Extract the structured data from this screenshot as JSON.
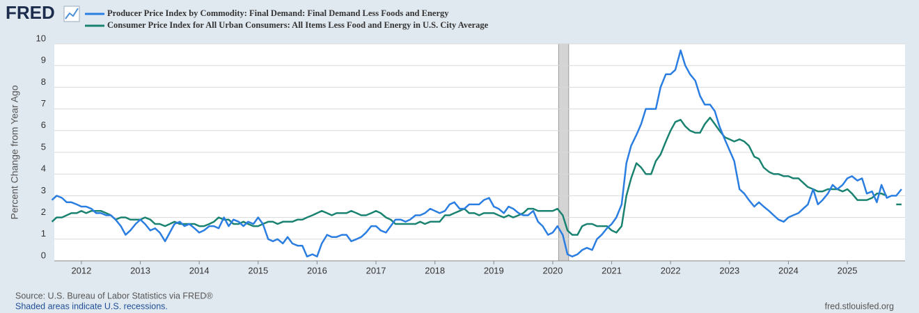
{
  "chart_data": {
    "type": "line",
    "logo": "FRED",
    "ylabel": "Percent Change from Year Ago",
    "source": "Source: U.S. Bureau of Labor Statistics via FRED®",
    "note": "Shaded areas indicate U.S. recessions.",
    "credit": "fred.stlouisfed.org",
    "xlim": [
      2011.54,
      2025.98
    ],
    "xticks": [
      2012,
      2013,
      2014,
      2015,
      2016,
      2017,
      2018,
      2019,
      2020,
      2021,
      2022,
      2023,
      2024,
      2025
    ],
    "ylim": [
      0,
      10
    ],
    "yticks": [
      0,
      1,
      2,
      3,
      4,
      5,
      6,
      7,
      8,
      9,
      10
    ],
    "grid": true,
    "recessions": [
      [
        2020.1,
        2020.27
      ]
    ],
    "x": [
      2011.5,
      2011.58,
      2011.67,
      2011.75,
      2011.83,
      2011.92,
      2012.0,
      2012.08,
      2012.17,
      2012.25,
      2012.33,
      2012.42,
      2012.5,
      2012.58,
      2012.67,
      2012.75,
      2012.83,
      2012.92,
      2013.0,
      2013.08,
      2013.17,
      2013.25,
      2013.33,
      2013.42,
      2013.5,
      2013.58,
      2013.67,
      2013.75,
      2013.83,
      2013.92,
      2014.0,
      2014.08,
      2014.17,
      2014.25,
      2014.33,
      2014.42,
      2014.5,
      2014.58,
      2014.67,
      2014.75,
      2014.83,
      2014.92,
      2015.0,
      2015.08,
      2015.17,
      2015.25,
      2015.33,
      2015.42,
      2015.5,
      2015.58,
      2015.67,
      2015.75,
      2015.83,
      2015.92,
      2016.0,
      2016.08,
      2016.17,
      2016.25,
      2016.33,
      2016.42,
      2016.5,
      2016.58,
      2016.67,
      2016.75,
      2016.83,
      2016.92,
      2017.0,
      2017.08,
      2017.17,
      2017.25,
      2017.33,
      2017.42,
      2017.5,
      2017.58,
      2017.67,
      2017.75,
      2017.83,
      2017.92,
      2018.0,
      2018.08,
      2018.17,
      2018.25,
      2018.33,
      2018.42,
      2018.5,
      2018.58,
      2018.67,
      2018.75,
      2018.83,
      2018.92,
      2019.0,
      2019.08,
      2019.17,
      2019.25,
      2019.33,
      2019.42,
      2019.5,
      2019.58,
      2019.67,
      2019.75,
      2019.83,
      2019.92,
      2020.0,
      2020.08,
      2020.17,
      2020.25,
      2020.33,
      2020.42,
      2020.5,
      2020.58,
      2020.67,
      2020.75,
      2020.83,
      2020.92,
      2021.0,
      2021.08,
      2021.17,
      2021.25,
      2021.33,
      2021.42,
      2021.5,
      2021.58,
      2021.67,
      2021.75,
      2021.83,
      2021.92,
      2022.0,
      2022.08,
      2022.17,
      2022.25,
      2022.33,
      2022.42,
      2022.5,
      2022.58,
      2022.67,
      2022.75,
      2022.83,
      2022.92,
      2023.0,
      2023.08,
      2023.17,
      2023.25,
      2023.33,
      2023.42,
      2023.5,
      2023.58,
      2023.67,
      2023.75,
      2023.83,
      2023.92,
      2024.0,
      2024.08,
      2024.17,
      2024.25,
      2024.33,
      2024.42,
      2024.5,
      2024.58,
      2024.67,
      2024.75,
      2024.83,
      2024.92,
      2025.0,
      2025.08,
      2025.17,
      2025.25,
      2025.33,
      2025.42,
      2025.5,
      2025.58,
      2025.67,
      2025.75,
      2025.83,
      2025.92
    ],
    "series": [
      {
        "name": "Producer Price Index by Commodity: Final Demand: Final Demand Less Foods and Energy",
        "color": "#2a7de1",
        "values": [
          2.8,
          3.0,
          2.9,
          2.7,
          2.7,
          2.6,
          2.5,
          2.5,
          2.4,
          2.2,
          2.2,
          2.1,
          2.1,
          1.9,
          1.6,
          1.2,
          1.4,
          1.7,
          1.9,
          1.7,
          1.4,
          1.5,
          1.3,
          0.9,
          1.3,
          1.7,
          1.8,
          1.6,
          1.7,
          1.5,
          1.3,
          1.4,
          1.6,
          1.6,
          1.5,
          2.0,
          1.6,
          1.9,
          1.8,
          1.6,
          1.8,
          1.7,
          2.0,
          1.7,
          1.0,
          0.9,
          1.0,
          0.8,
          1.1,
          0.8,
          0.7,
          0.7,
          0.2,
          0.3,
          0.2,
          0.8,
          1.2,
          1.1,
          1.1,
          1.2,
          1.2,
          0.9,
          1.0,
          1.1,
          1.3,
          1.6,
          1.6,
          1.4,
          1.3,
          1.6,
          1.9,
          1.9,
          1.8,
          1.9,
          2.1,
          2.1,
          2.2,
          2.4,
          2.3,
          2.2,
          2.3,
          2.6,
          2.7,
          2.4,
          2.4,
          2.6,
          2.6,
          2.6,
          2.8,
          2.9,
          2.5,
          2.4,
          2.2,
          2.5,
          2.4,
          2.2,
          2.1,
          2.1,
          2.3,
          1.8,
          1.6,
          1.2,
          1.3,
          1.6,
          1.2,
          0.3,
          0.2,
          0.3,
          0.5,
          0.6,
          0.5,
          1.0,
          1.2,
          1.5,
          1.7,
          2.0,
          2.6,
          4.5,
          5.3,
          5.8,
          6.3,
          7.0,
          7.0,
          7.0,
          8.0,
          8.6,
          8.6,
          8.8,
          9.7,
          9.0,
          8.6,
          8.3,
          7.6,
          7.2,
          7.2,
          6.9,
          6.2,
          5.6,
          5.1,
          4.6,
          3.3,
          3.1,
          2.8,
          2.5,
          2.7,
          2.5,
          2.3,
          2.1,
          1.9,
          1.8,
          2.0,
          2.1,
          2.2,
          2.4,
          2.6,
          3.3,
          2.6,
          2.8,
          3.1,
          3.5,
          3.3,
          3.5,
          3.8,
          3.9,
          3.7,
          3.8,
          3.1,
          3.2,
          2.7,
          3.5,
          2.9,
          3.0,
          3.0,
          3.3
        ]
      },
      {
        "name": "Consumer Price Index for All Urban Consumers: All Items Less Food and Energy in U.S. City Average",
        "color": "#1a8270",
        "values": [
          1.8,
          2.0,
          2.0,
          2.1,
          2.2,
          2.2,
          2.3,
          2.2,
          2.3,
          2.3,
          2.3,
          2.2,
          2.1,
          1.9,
          2.0,
          2.0,
          1.9,
          1.9,
          1.9,
          2.0,
          1.9,
          1.7,
          1.7,
          1.6,
          1.7,
          1.8,
          1.7,
          1.7,
          1.7,
          1.7,
          1.6,
          1.6,
          1.7,
          1.8,
          2.0,
          1.9,
          1.9,
          1.7,
          1.7,
          1.8,
          1.7,
          1.6,
          1.6,
          1.7,
          1.8,
          1.8,
          1.7,
          1.8,
          1.8,
          1.8,
          1.9,
          1.9,
          2.0,
          2.1,
          2.2,
          2.3,
          2.2,
          2.1,
          2.2,
          2.2,
          2.2,
          2.3,
          2.2,
          2.1,
          2.1,
          2.2,
          2.3,
          2.2,
          2.0,
          1.9,
          1.7,
          1.7,
          1.7,
          1.7,
          1.7,
          1.8,
          1.7,
          1.8,
          1.8,
          1.8,
          2.1,
          2.1,
          2.2,
          2.3,
          2.4,
          2.2,
          2.2,
          2.1,
          2.2,
          2.2,
          2.2,
          2.1,
          2.0,
          2.1,
          2.0,
          2.1,
          2.2,
          2.4,
          2.4,
          2.3,
          2.3,
          2.3,
          2.3,
          2.4,
          2.1,
          1.4,
          1.2,
          1.2,
          1.6,
          1.7,
          1.7,
          1.6,
          1.6,
          1.6,
          1.4,
          1.3,
          1.6,
          3.0,
          3.8,
          4.5,
          4.3,
          4.0,
          4.0,
          4.6,
          4.9,
          5.5,
          6.0,
          6.4,
          6.5,
          6.2,
          6.0,
          5.9,
          5.9,
          6.3,
          6.6,
          6.3,
          6.0,
          5.7,
          5.6,
          5.5,
          5.6,
          5.5,
          5.3,
          4.8,
          4.7,
          4.3,
          4.1,
          4.0,
          4.0,
          3.9,
          3.9,
          3.8,
          3.8,
          3.6,
          3.4,
          3.3,
          3.2,
          3.2,
          3.3,
          3.3,
          3.3,
          3.2,
          3.3,
          3.1,
          2.8,
          2.8,
          2.8,
          2.9,
          3.1,
          3.1,
          3.0,
          null,
          2.6,
          2.6
        ]
      }
    ]
  }
}
